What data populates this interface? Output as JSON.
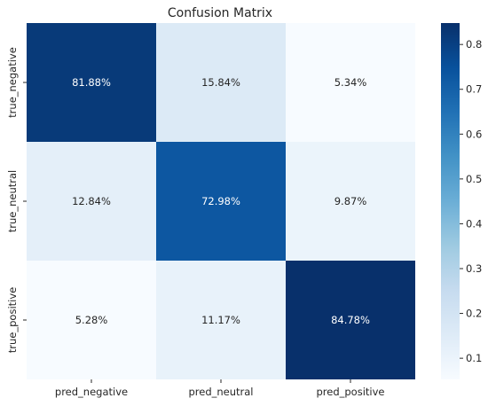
{
  "chart_data": {
    "type": "heatmap",
    "title": "Confusion Matrix",
    "x_labels": [
      "pred_negative",
      "pred_neutral",
      "pred_positive"
    ],
    "y_labels": [
      "true_negative",
      "true_neutral",
      "true_positive"
    ],
    "values": [
      [
        0.8188,
        0.1584,
        0.0534
      ],
      [
        0.1284,
        0.7298,
        0.0987
      ],
      [
        0.0528,
        0.1117,
        0.8478
      ]
    ],
    "cell_labels": [
      [
        "81.88%",
        "15.84%",
        "5.34%"
      ],
      [
        "12.84%",
        "72.98%",
        "9.87%"
      ],
      [
        "5.28%",
        "11.17%",
        "84.78%"
      ]
    ],
    "colormap": "Blues",
    "colorbar": {
      "range": [
        0.0528,
        0.8478
      ],
      "ticks": [
        0.1,
        0.2,
        0.3,
        0.4,
        0.5,
        0.6,
        0.7,
        0.8
      ],
      "tick_labels": [
        "0.1",
        "0.2",
        "0.3",
        "0.4",
        "0.5",
        "0.6",
        "0.7",
        "0.8"
      ]
    },
    "grid": false
  }
}
